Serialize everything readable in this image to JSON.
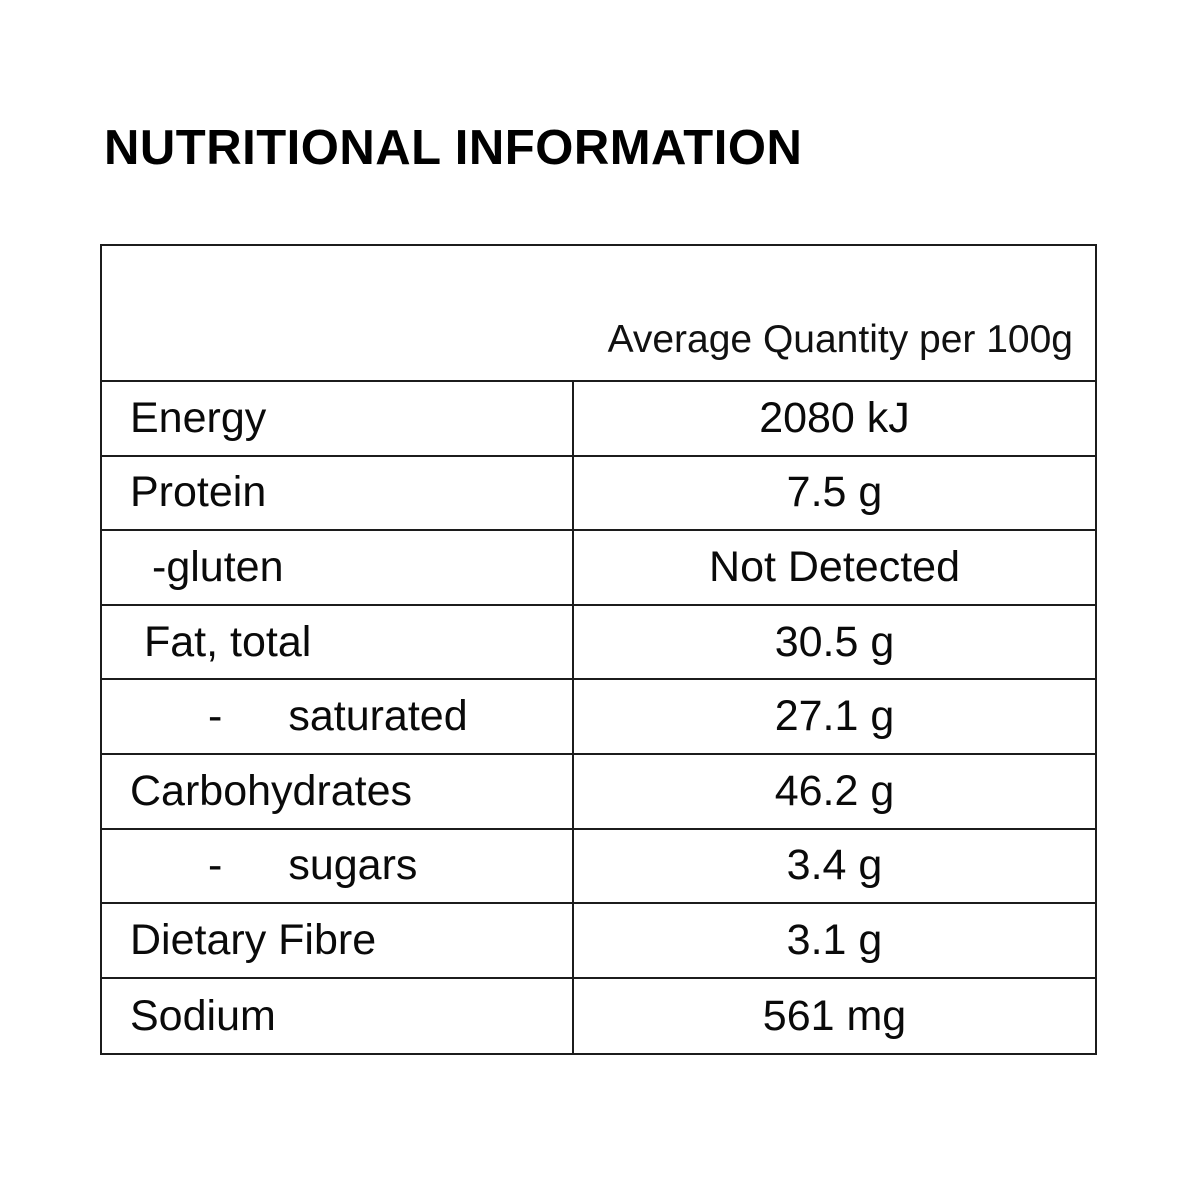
{
  "page": {
    "title": "NUTRITIONAL INFORMATION"
  },
  "table": {
    "header": "Average Quantity per 100g",
    "rows": [
      {
        "prefix": "",
        "label": "Energy",
        "value": "2080 kJ"
      },
      {
        "prefix": "",
        "label": "Protein",
        "value": "7.5 g"
      },
      {
        "prefix": "-",
        "label": "gluten",
        "value": "Not Detected"
      },
      {
        "prefix": "",
        "label": "Fat, total",
        "value": "30.5 g"
      },
      {
        "prefix": "-",
        "label": "saturated",
        "value": "27.1 g"
      },
      {
        "prefix": "",
        "label": "Carbohydrates",
        "value": "46.2 g"
      },
      {
        "prefix": "-",
        "label": "sugars",
        "value": "3.4 g"
      },
      {
        "prefix": "",
        "label": "Dietary Fibre",
        "value": "3.1 g"
      },
      {
        "prefix": "",
        "label": "Sodium",
        "value": "561 mg"
      }
    ]
  }
}
